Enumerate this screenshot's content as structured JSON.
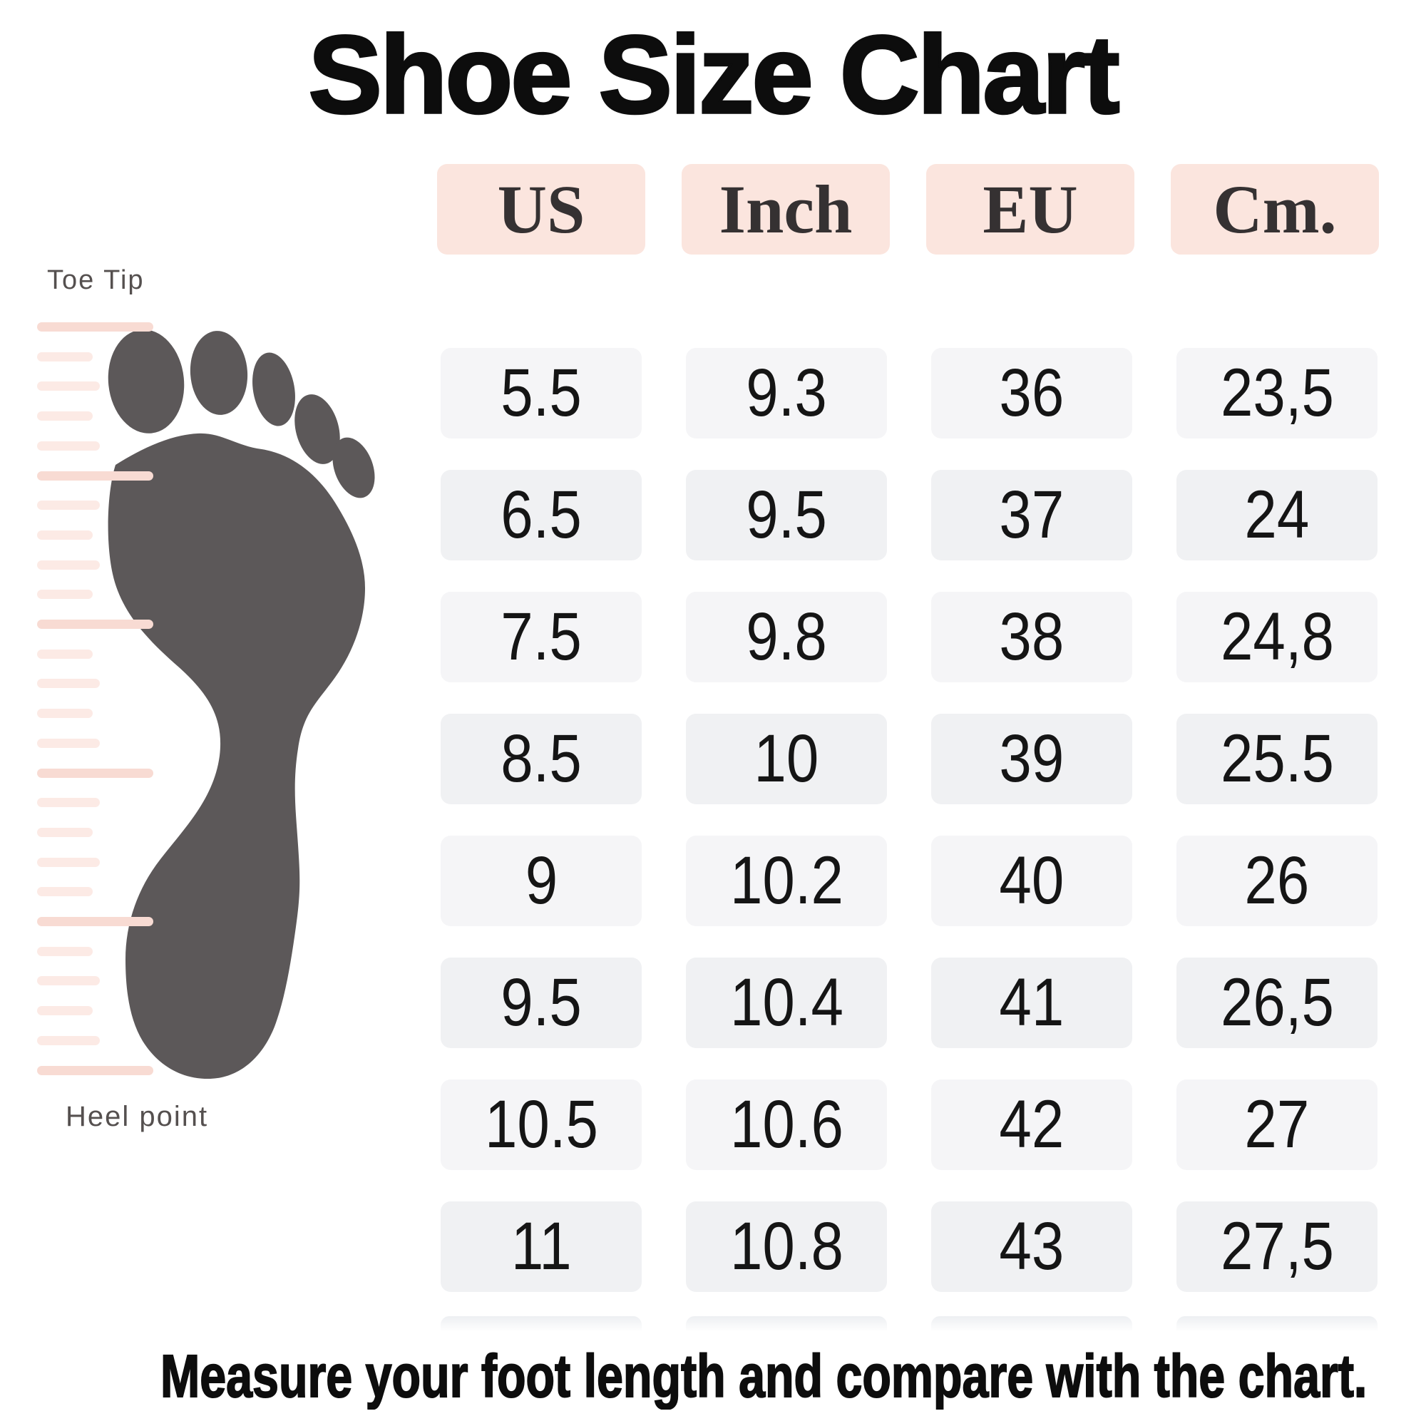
{
  "title": "Shoe Size Chart",
  "table": {
    "headers": [
      "US",
      "Inch",
      "EU",
      "Cm."
    ],
    "rows": [
      [
        "5.5",
        "9.3",
        "36",
        "23,5"
      ],
      [
        "6.5",
        "9.5",
        "37",
        "24"
      ],
      [
        "7.5",
        "9.8",
        "38",
        "24,8"
      ],
      [
        "8.5",
        "10",
        "39",
        "25.5"
      ],
      [
        "9",
        "10.2",
        "40",
        "26"
      ],
      [
        "9.5",
        "10.4",
        "41",
        "26,5"
      ],
      [
        "10.5",
        "10.6",
        "42",
        "27"
      ],
      [
        "11",
        "10.8",
        "43",
        "27,5"
      ]
    ]
  },
  "diagram": {
    "toe_label": "Toe Tip",
    "heel_label": "Heel point"
  },
  "footnote": "Measure your foot length and compare with the chart.",
  "colors": {
    "ink": "#0d0d0d",
    "header_bg": "#fbe5de",
    "cell_bg": "#f5f5f7",
    "cell_bg_alt": "#f0f1f3",
    "foot": "#5c5859",
    "stripe": "#fceae5",
    "stripe_marker": "#f8dbd3"
  },
  "ruler": {
    "tick_count": 26,
    "tick_spacing": 41.7,
    "marker_every": 5
  }
}
